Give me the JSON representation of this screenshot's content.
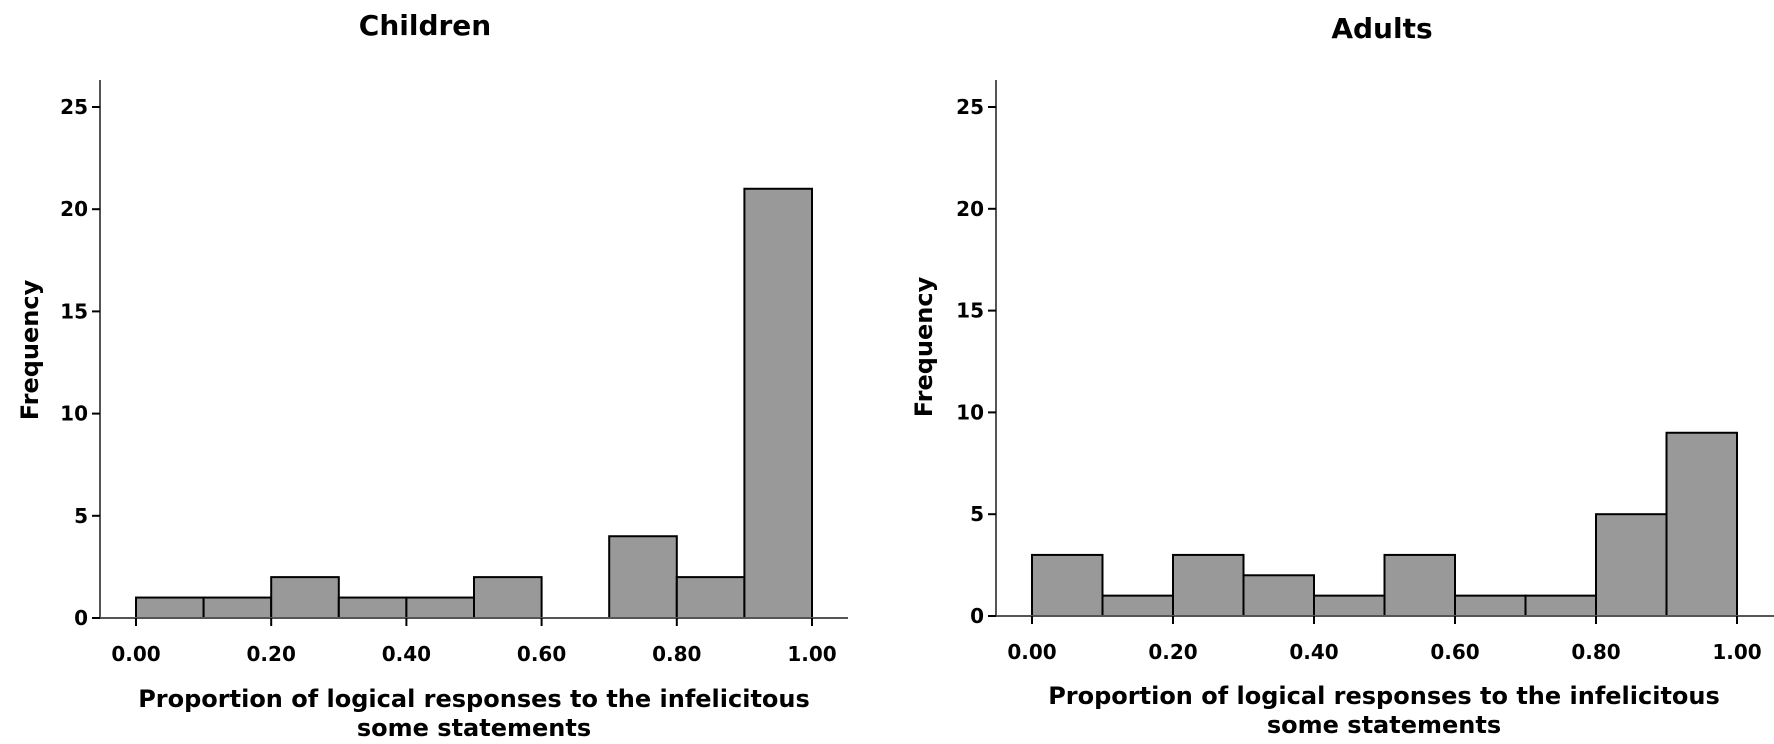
{
  "chart_data": [
    {
      "type": "bar",
      "title": "Children",
      "xlabel_lines": [
        "Proportion of logical responses to the infelicitous",
        "some statements"
      ],
      "ylabel": "Frequency",
      "xlim": [
        0,
        1
      ],
      "ylim": [
        0,
        25
      ],
      "x_ticks": [
        "0.00",
        "0.20",
        "0.40",
        "0.60",
        "0.80",
        "1.00"
      ],
      "y_ticks": [
        "0",
        "5",
        "10",
        "15",
        "20",
        "25"
      ],
      "bins": [
        {
          "start": 0.0,
          "end": 0.1,
          "value": 1
        },
        {
          "start": 0.1,
          "end": 0.2,
          "value": 1
        },
        {
          "start": 0.2,
          "end": 0.3,
          "value": 2
        },
        {
          "start": 0.3,
          "end": 0.4,
          "value": 1
        },
        {
          "start": 0.4,
          "end": 0.5,
          "value": 1
        },
        {
          "start": 0.5,
          "end": 0.6,
          "value": 2
        },
        {
          "start": 0.6,
          "end": 0.7,
          "value": 0
        },
        {
          "start": 0.7,
          "end": 0.8,
          "value": 4
        },
        {
          "start": 0.8,
          "end": 0.9,
          "value": 2
        },
        {
          "start": 0.9,
          "end": 1.0,
          "value": 21
        }
      ],
      "grid": false,
      "bar_color": "#999999"
    },
    {
      "type": "bar",
      "title": "Adults",
      "xlabel_lines": [
        "Proportion of logical responses to the infelicitous",
        "some statements"
      ],
      "ylabel": "Frequency",
      "xlim": [
        0,
        1
      ],
      "ylim": [
        0,
        25
      ],
      "x_ticks": [
        "0.00",
        "0.20",
        "0.40",
        "0.60",
        "0.80",
        "1.00"
      ],
      "y_ticks": [
        "0",
        "5",
        "10",
        "15",
        "20",
        "25"
      ],
      "bins": [
        {
          "start": 0.0,
          "end": 0.1,
          "value": 3
        },
        {
          "start": 0.1,
          "end": 0.2,
          "value": 1
        },
        {
          "start": 0.2,
          "end": 0.3,
          "value": 3
        },
        {
          "start": 0.3,
          "end": 0.4,
          "value": 2
        },
        {
          "start": 0.4,
          "end": 0.5,
          "value": 1
        },
        {
          "start": 0.5,
          "end": 0.6,
          "value": 3
        },
        {
          "start": 0.6,
          "end": 0.7,
          "value": 1
        },
        {
          "start": 0.7,
          "end": 0.8,
          "value": 1
        },
        {
          "start": 0.8,
          "end": 0.9,
          "value": 5
        },
        {
          "start": 0.9,
          "end": 1.0,
          "value": 9
        }
      ],
      "grid": false,
      "bar_color": "#999999"
    }
  ]
}
